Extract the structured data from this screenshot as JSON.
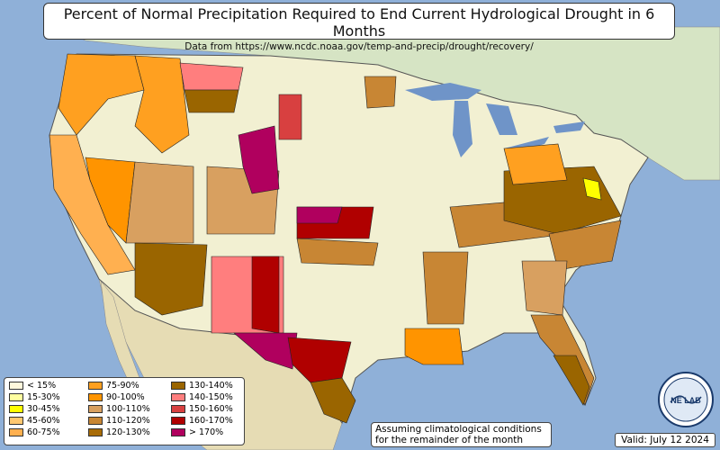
{
  "title": "Percent of Normal Precipitation Required to End Current Hydrological Drought in 6 Months",
  "subtitle": "Data from https://www.ncdc.noaa.gov/temp-and-precip/drought/recovery/",
  "legend": [
    {
      "label": "< 15%",
      "color": "#fff8dc"
    },
    {
      "label": "15-30%",
      "color": "#ffffa0"
    },
    {
      "label": "30-45%",
      "color": "#ffff00"
    },
    {
      "label": "45-60%",
      "color": "#ffc870"
    },
    {
      "label": "60-75%",
      "color": "#ffb050"
    },
    {
      "label": "75-90%",
      "color": "#ffa020"
    },
    {
      "label": "90-100%",
      "color": "#ff9400"
    },
    {
      "label": "100-110%",
      "color": "#d8a060"
    },
    {
      "label": "110-120%",
      "color": "#c88634"
    },
    {
      "label": "120-130%",
      "color": "#a86c08"
    },
    {
      "label": "130-140%",
      "color": "#9a6500"
    },
    {
      "label": "140-150%",
      "color": "#ff7e7e"
    },
    {
      "label": "150-160%",
      "color": "#d84040"
    },
    {
      "label": "160-170%",
      "color": "#b00000"
    },
    {
      "label": "> 170%",
      "color": "#b0005e"
    }
  ],
  "note": {
    "line1": "Assuming climatological conditions",
    "line2": "for the remainder of the month"
  },
  "valid": "Valid: July 12 2024",
  "logo_text": "NE LAB",
  "colors": {
    "ocean": "#8fb0d8",
    "land": "#f2f0d2",
    "mexico": "#e6dcb4",
    "canada": "#d6e4c4",
    "lakes": "#6f94c8"
  }
}
